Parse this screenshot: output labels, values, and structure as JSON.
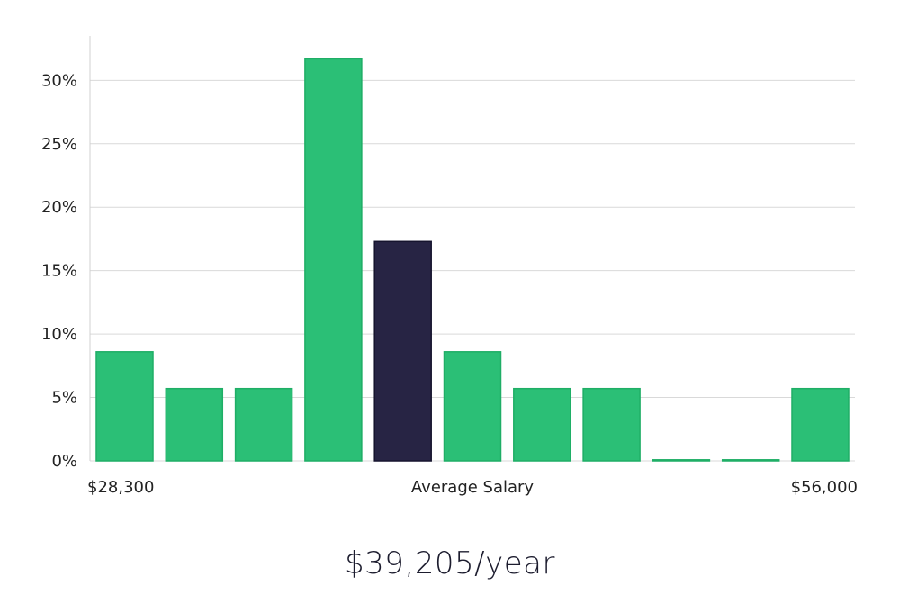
{
  "colors": {
    "bar": "#2bbf76",
    "bar_border": "#1fae66",
    "highlight_bar": "#272444",
    "highlight_border": "#16142e"
  },
  "chart_data": {
    "type": "bar",
    "values": [
      8.6,
      5.7,
      5.7,
      31.7,
      17.3,
      8.6,
      5.7,
      5.7,
      0,
      0,
      5.7
    ],
    "highlight_index": 4,
    "yticks": [
      "0%",
      "5%",
      "10%",
      "15%",
      "20%",
      "25%",
      "30%"
    ],
    "ytick_values": [
      0,
      5,
      10,
      15,
      20,
      25,
      30
    ],
    "ylim": [
      0,
      33.5
    ],
    "grid": true,
    "x_labels": {
      "min": "$28,300",
      "center": "Average Salary",
      "max": "$56,000"
    }
  },
  "summary": {
    "salary_text": "$39,205/year"
  }
}
